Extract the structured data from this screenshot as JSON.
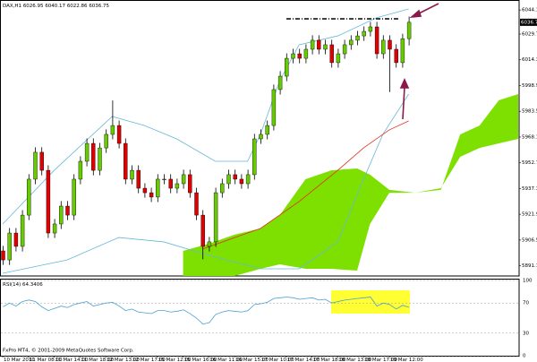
{
  "chart_data": {
    "type": "candlestick",
    "symbol": "DAX,H1",
    "xlim": [
      0,
      80
    ],
    "ylim": [
      5885,
      6049
    ],
    "up_color": "#66cc00",
    "down_color": "#e00000",
    "candles": [
      [
        5900.0,
        5903.0,
        5891.6,
        5894.6
      ],
      [
        5894.6,
        5913.7,
        5891.6,
        5910.7
      ],
      [
        5910.7,
        5913.7,
        5899.7,
        5902.7
      ],
      [
        5902.7,
        5924.4,
        5899.7,
        5921.4
      ],
      [
        5921.4,
        5945.9,
        5918.4,
        5942.9
      ],
      [
        5942.9,
        5962.0,
        5939.9,
        5959.0
      ],
      [
        5959.0,
        5962.0,
        5945.2,
        5948.2
      ],
      [
        5948.2,
        5951.2,
        5907.7,
        5910.7
      ],
      [
        5910.7,
        5919.1,
        5907.7,
        5916.1
      ],
      [
        5916.1,
        5929.8,
        5913.1,
        5926.8
      ],
      [
        5926.8,
        5929.8,
        5918.4,
        5921.4
      ],
      [
        5921.4,
        5945.9,
        5918.4,
        5942.9
      ],
      [
        5942.9,
        5956.6,
        5939.9,
        5953.6
      ],
      [
        5953.6,
        5967.3,
        5950.6,
        5964.3
      ],
      [
        5964.3,
        5967.3,
        5945.2,
        5948.2
      ],
      [
        5948.2,
        5964.6,
        5945.2,
        5961.6
      ],
      [
        5961.6,
        5972.7,
        5958.6,
        5969.7
      ],
      [
        5969.7,
        5990.0,
        5966.7,
        5975.0
      ],
      [
        5975.0,
        5978.0,
        5961.3,
        5964.3
      ],
      [
        5964.3,
        5967.3,
        5939.9,
        5942.9
      ],
      [
        5942.9,
        5951.2,
        5939.9,
        5948.2
      ],
      [
        5948.2,
        5951.2,
        5934.5,
        5937.5
      ],
      [
        5937.5,
        5940.5,
        5931.8,
        5934.8
      ],
      [
        5934.8,
        5937.8,
        5929.2,
        5932.2
      ],
      [
        5932.2,
        5945.9,
        5929.2,
        5942.9
      ],
      [
        5942.9,
        5945.9,
        5939.9,
        5942.9
      ],
      [
        5942.9,
        5945.9,
        5934.5,
        5937.5
      ],
      [
        5937.5,
        5943.2,
        5934.5,
        5940.2
      ],
      [
        5940.2,
        5948.6,
        5937.2,
        5945.6
      ],
      [
        5945.6,
        5948.6,
        5931.8,
        5934.8
      ],
      [
        5934.8,
        5937.8,
        5918.4,
        5921.4
      ],
      [
        5921.4,
        5924.4,
        5895.0,
        5902.7
      ],
      [
        5902.7,
        5908.4,
        5899.7,
        5905.4
      ],
      [
        5905.4,
        5937.8,
        5902.4,
        5934.8
      ],
      [
        5934.8,
        5943.2,
        5931.8,
        5940.2
      ],
      [
        5940.2,
        5948.6,
        5937.2,
        5945.6
      ],
      [
        5945.6,
        5948.6,
        5939.9,
        5942.9
      ],
      [
        5942.9,
        5945.9,
        5937.2,
        5940.2
      ],
      [
        5940.2,
        5948.6,
        5937.2,
        5945.6
      ],
      [
        5945.6,
        5970.0,
        5942.6,
        5967.0
      ],
      [
        5967.0,
        5972.7,
        5964.0,
        5969.7
      ],
      [
        5969.7,
        5978.0,
        5966.7,
        5975.0
      ],
      [
        5975.0,
        5999.5,
        5972.0,
        5996.5
      ],
      [
        5996.5,
        6007.5,
        5993.5,
        6004.5
      ],
      [
        6004.5,
        6018.2,
        6001.5,
        6015.2
      ],
      [
        6015.2,
        6020.9,
        6012.2,
        6017.9
      ],
      [
        6017.9,
        6020.9,
        6012.2,
        6015.2
      ],
      [
        6015.2,
        6023.6,
        6012.2,
        6020.6
      ],
      [
        6020.6,
        6029.0,
        6017.6,
        6026.0
      ],
      [
        6026.0,
        6029.0,
        6017.6,
        6020.6
      ],
      [
        6020.6,
        6026.3,
        6017.6,
        6023.3
      ],
      [
        6023.3,
        6026.3,
        6009.6,
        6012.6
      ],
      [
        6012.6,
        6020.9,
        6009.6,
        6017.9
      ],
      [
        6017.9,
        6026.3,
        6014.9,
        6023.3
      ],
      [
        6023.3,
        6029.0,
        6020.3,
        6026.0
      ],
      [
        6026.0,
        6031.6,
        6023.0,
        6028.6
      ],
      [
        6028.6,
        6034.3,
        6025.6,
        6031.3
      ],
      [
        6031.3,
        6037.0,
        6028.3,
        6034.0
      ],
      [
        6034.0,
        6037.0,
        6014.9,
        6017.9
      ],
      [
        6017.9,
        6029.0,
        6014.9,
        6026.0
      ],
      [
        6026.0,
        6029.0,
        5995.0,
        6020.6
      ],
      [
        6020.6,
        6023.6,
        6009.6,
        6012.6
      ],
      [
        6012.6,
        6029.9,
        6009.6,
        6026.95
      ],
      [
        6026.95,
        6040.17,
        6022.86,
        6036.75
      ]
    ],
    "lines": [
      {
        "color": "#66b8d8",
        "x": [
          0,
          8,
          14,
          17,
          22,
          27,
          33,
          38,
          40,
          43,
          46,
          52,
          58,
          63
        ],
        "values": [
          5916.1,
          5948.2,
          5969.7,
          5980.4,
          5975.0,
          5967.0,
          5953.6,
          5953.6,
          5969.7,
          6001.8,
          6023.3,
          6028.6,
          6039.4,
          6044.7
        ]
      },
      {
        "color": "#66b8d8",
        "x": [
          0,
          10,
          18,
          25,
          32,
          40,
          46,
          52,
          56,
          59,
          63
        ],
        "values": [
          5886.6,
          5894.6,
          5908.0,
          5905.4,
          5897.3,
          5889.3,
          5889.3,
          5905.4,
          5942.9,
          5969.7,
          5993.8
        ]
      },
      {
        "color": "#e03020",
        "x": [
          31,
          36,
          40,
          46,
          52,
          56,
          60,
          63
        ],
        "values": [
          5901.1,
          5908.0,
          5913.4,
          5929.5,
          5948.2,
          5961.6,
          5972.4,
          5977.7
        ]
      }
    ],
    "cloud": {
      "color": "#7ee000",
      "x": [
        28,
        32,
        36,
        40,
        43,
        47,
        51,
        55,
        57,
        60,
        64,
        68,
        71,
        74,
        77,
        80
      ],
      "span_a": [
        5900.0,
        5904.3,
        5909.7,
        5913.4,
        5921.4,
        5942.9,
        5948.2,
        5949.3,
        5945.6,
        5936.5,
        5934.8,
        5936.5,
        5969.7,
        5975.0,
        5990.1,
        5993.8
      ],
      "span_b": [
        5885.0,
        5885.0,
        5885.0,
        5889.3,
        5892.0,
        5889.3,
        5889.3,
        5888.2,
        5916.1,
        5934.8,
        5934.8,
        5937.5,
        5956.3,
        5961.6,
        5964.3,
        5967.0
      ]
    },
    "yticks": [
      {
        "value": 6044.1,
        "label": "6044.10"
      },
      {
        "value": 6029.7,
        "label": "6029.70"
      },
      {
        "value": 6014.3,
        "label": "6014.30"
      },
      {
        "value": 5998.9,
        "label": "5998.90"
      },
      {
        "value": 5983.5,
        "label": "5983.50"
      },
      {
        "value": 5968.1,
        "label": "5968.10"
      },
      {
        "value": 5952.7,
        "label": "5952.70"
      },
      {
        "value": 5937.3,
        "label": "5937.30"
      },
      {
        "value": 5921.9,
        "label": "5921.90"
      },
      {
        "value": 5906.5,
        "label": "5906.50"
      },
      {
        "value": 5891.1,
        "label": "5891.10"
      }
    ],
    "xticks": [
      {
        "value": 0,
        "label": "10 Mar 2010"
      },
      {
        "value": 4,
        "label": "11 Mar 08:00"
      },
      {
        "value": 8,
        "label": "11 Mar 14:00"
      },
      {
        "value": 12,
        "label": "11 Mar 18:00"
      },
      {
        "value": 16,
        "label": "12 Mar 13:00"
      },
      {
        "value": 20,
        "label": "12 Mar 17:00"
      },
      {
        "value": 24,
        "label": "15 Mar 12:00"
      },
      {
        "value": 28,
        "label": "15 Mar 16:00"
      },
      {
        "value": 32,
        "label": "16 Mar 11:00"
      },
      {
        "value": 36,
        "label": "16 Mar 15:00"
      },
      {
        "value": 40,
        "label": "17 Mar 10:00"
      },
      {
        "value": 44,
        "label": "17 Mar 14:00"
      },
      {
        "value": 48,
        "label": "17 Mar 18:00"
      },
      {
        "value": 52,
        "label": "18 Mar 13:00"
      },
      {
        "value": 56,
        "label": "18 Mar 17:00"
      },
      {
        "value": 60,
        "label": "19 Mar 12:00"
      }
    ],
    "rsi": {
      "label": "RSI(14)",
      "color": "#4a9fd0",
      "ylim": [
        0,
        100
      ],
      "yticks": [
        100,
        70,
        30,
        0
      ],
      "values": [
        65,
        70,
        66,
        72,
        74,
        72,
        65,
        60,
        63,
        66,
        64,
        68,
        70,
        72,
        66,
        68,
        70,
        71,
        66,
        60,
        62,
        58,
        57,
        56,
        60,
        60,
        58,
        59,
        61,
        56,
        50,
        42,
        44,
        55,
        58,
        60,
        59,
        58,
        60,
        68,
        69,
        71,
        76,
        77,
        78,
        77,
        75,
        76,
        77,
        74,
        75,
        70,
        72,
        74,
        75,
        76,
        77,
        78,
        66,
        70,
        68,
        62,
        67,
        64.3406
      ]
    },
    "footer": "FxPro MT4, © 2001-2009 MetaQuotes Software Corp."
  }
}
